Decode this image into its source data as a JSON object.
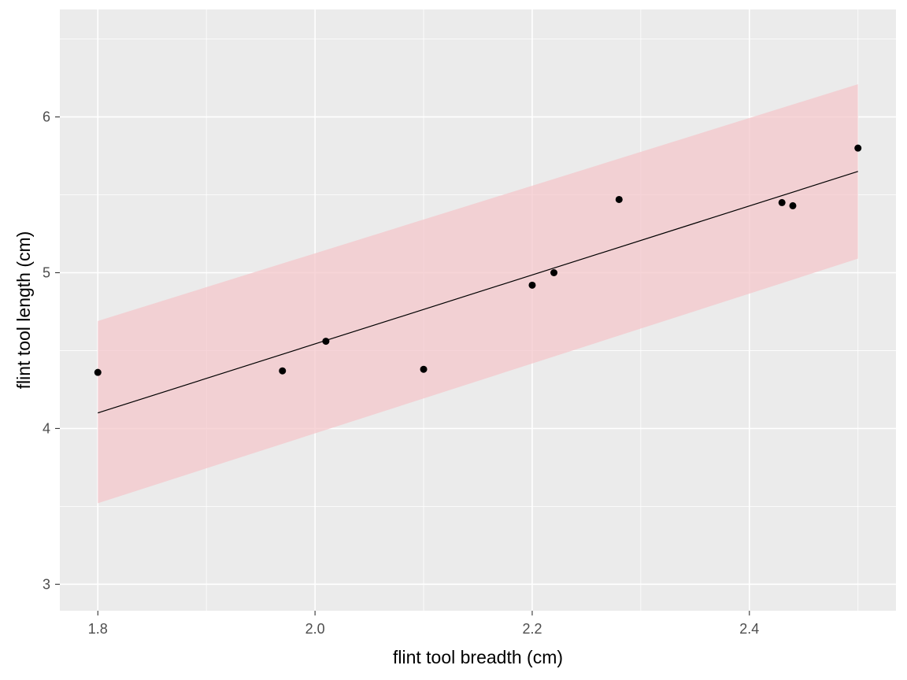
{
  "chart_data": {
    "type": "scatter",
    "title": "",
    "xlabel": "flint tool breadth (cm)",
    "ylabel": "flint tool length (cm)",
    "xlim": [
      1.765,
      2.535
    ],
    "ylim": [
      2.83,
      6.69
    ],
    "x_ticks": [
      1.8,
      2.0,
      2.2,
      2.4
    ],
    "x_tick_labels": [
      "1.8",
      "2.0",
      "2.2",
      "2.4"
    ],
    "y_ticks": [
      3,
      4,
      5,
      6
    ],
    "y_tick_labels": [
      "3",
      "4",
      "5",
      "6"
    ],
    "x_minor": [
      1.9,
      2.1,
      2.3,
      2.5
    ],
    "y_minor": [
      3.5,
      4.5,
      5.5,
      6.5
    ],
    "grid": true,
    "points": [
      {
        "x": 1.8,
        "y": 4.36
      },
      {
        "x": 1.97,
        "y": 4.37
      },
      {
        "x": 2.01,
        "y": 4.56
      },
      {
        "x": 2.1,
        "y": 4.38
      },
      {
        "x": 2.2,
        "y": 4.92
      },
      {
        "x": 2.22,
        "y": 5.0
      },
      {
        "x": 2.28,
        "y": 5.47
      },
      {
        "x": 2.43,
        "y": 5.45
      },
      {
        "x": 2.44,
        "y": 5.43
      },
      {
        "x": 2.5,
        "y": 5.8
      }
    ],
    "fit_line": {
      "x": [
        1.8,
        2.5
      ],
      "y": [
        4.1,
        5.65
      ]
    },
    "band": {
      "x": [
        1.8,
        2.5
      ],
      "upper": [
        4.69,
        6.21
      ],
      "lower": [
        3.52,
        5.09
      ]
    },
    "colors": {
      "panel": "#ebebeb",
      "grid": "#ffffff",
      "band": "#f4c7cb",
      "line": "#000000",
      "point": "#000000"
    }
  }
}
